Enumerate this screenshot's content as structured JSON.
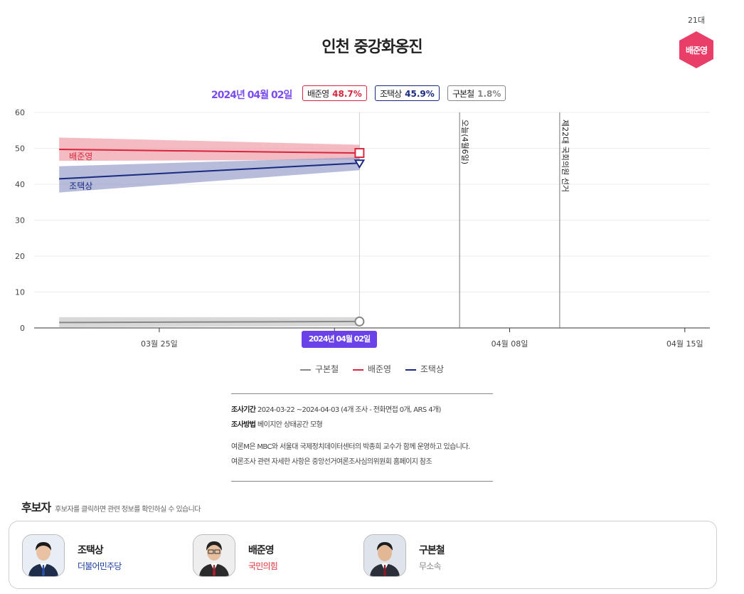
{
  "page": {
    "title": "인천 중강화옹진",
    "badge": {
      "term": "21대",
      "name": "배준영",
      "color": "#e83e68"
    }
  },
  "top": {
    "date": "2024년 04월 02일",
    "pills": [
      {
        "name": "배준영",
        "value": "48.7%",
        "color": "#d7263d"
      },
      {
        "name": "조택상",
        "value": "45.9%",
        "color": "#1b2a80"
      },
      {
        "name": "구본철",
        "value": "1.8%",
        "color": "#888888"
      }
    ]
  },
  "chart_data": {
    "type": "line",
    "y_ticks": [
      "60",
      "50",
      "40",
      "30",
      "20",
      "10",
      "0"
    ],
    "ylim": [
      0,
      60
    ],
    "x_ticks": [
      "03월 25일",
      "04월 01일",
      "04월 08일",
      "04월 15일"
    ],
    "x_tick_dates": [
      "2024-03-25",
      "2024-04-01",
      "2024-04-08",
      "2024-04-15"
    ],
    "xlim": [
      "2024-03-20",
      "2024-04-16"
    ],
    "grid": true,
    "series": [
      {
        "name": "배준영",
        "color": "#d7263d",
        "band_color": "#f0a0a8",
        "x": [
          "2024-03-21",
          "2024-04-02"
        ],
        "y": [
          49.7,
          48.7
        ],
        "lower": [
          46.5,
          46.8
        ],
        "upper": [
          53.0,
          51.0
        ],
        "end_marker": "square"
      },
      {
        "name": "조택상",
        "color": "#1b2a80",
        "band_color": "#99a0cc",
        "x": [
          "2024-03-21",
          "2024-04-02"
        ],
        "y": [
          41.5,
          45.9
        ],
        "lower": [
          37.7,
          43.9
        ],
        "upper": [
          45.0,
          47.5
        ],
        "end_marker": "triangle"
      },
      {
        "name": "구본철",
        "color": "#888888",
        "band_color": "#c8c8c8",
        "x": [
          "2024-03-21",
          "2024-04-02"
        ],
        "y": [
          1.5,
          1.8
        ],
        "lower": [
          0.2,
          0.5
        ],
        "upper": [
          3.0,
          3.0
        ],
        "end_marker": "circle"
      }
    ],
    "annotations": [
      {
        "x": "2024-04-06",
        "text": "오늘(4월6일)"
      },
      {
        "x": "2024-04-10",
        "text": "제22대 국회의원 선거"
      }
    ],
    "cursor": {
      "x": "2024-04-02",
      "label": "2024년 04월 02일"
    },
    "legend": [
      "구본철",
      "배준영",
      "조택상"
    ]
  },
  "info": {
    "period_label": "조사기간",
    "period_value": "2024-03-22 ~2024-04-03 (4개 조사 - 전화면접 0개, ARS 4개)",
    "method_label": "조사방법",
    "method_value": "베이지안 상태공간 모형",
    "note1": "여론M은 MBC와 서울대 국제정치데이터센터의 박종희 교수가 함께 운영하고 있습니다.",
    "note2": "여론조사 관련 자세한 사항은 중앙선거여론조사심의위원회 홈페이지 참조"
  },
  "candidates": {
    "heading": "후보자",
    "hint": "후보자를 클릭하면 관련 정보를 확인하실 수 있습니다",
    "items": [
      {
        "name": "조택상",
        "party": "더불어민주당",
        "party_color": "#1b3fa0",
        "tie": "#2a4fa8"
      },
      {
        "name": "배준영",
        "party": "국민의힘",
        "party_color": "#e0323c",
        "tie": "#b02030"
      },
      {
        "name": "구본철",
        "party": "무소속",
        "party_color": "#888888",
        "tie": "#8a1c2a"
      }
    ]
  }
}
